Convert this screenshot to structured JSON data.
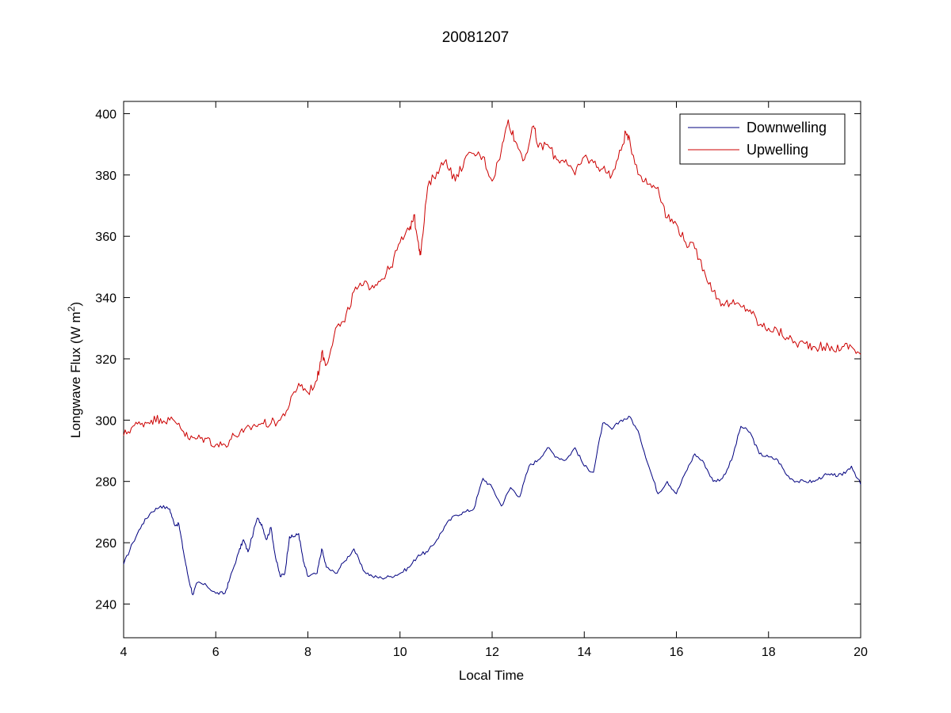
{
  "chart_data": {
    "type": "line",
    "title": "20081207",
    "xlabel": "Local Time",
    "ylabel": {
      "prefix": "Longwave Flux (W m",
      "superscript": "2",
      "suffix": ")"
    },
    "xlim": [
      4,
      20
    ],
    "ylim": [
      229,
      404
    ],
    "xticks": [
      4,
      6,
      8,
      10,
      12,
      14,
      16,
      18,
      20
    ],
    "yticks": [
      240,
      260,
      280,
      300,
      320,
      340,
      360,
      380,
      400
    ],
    "grid": false,
    "legend_position": "top-right",
    "series": [
      {
        "name": "Downwelling",
        "color": "#00007f",
        "points": [
          [
            4.0,
            253
          ],
          [
            4.2,
            260
          ],
          [
            4.4,
            266
          ],
          [
            4.6,
            270
          ],
          [
            4.8,
            272
          ],
          [
            5.0,
            271
          ],
          [
            5.1,
            266
          ],
          [
            5.2,
            266
          ],
          [
            5.3,
            257
          ],
          [
            5.4,
            249
          ],
          [
            5.5,
            243
          ],
          [
            5.6,
            247
          ],
          [
            5.8,
            246
          ],
          [
            6.0,
            243.5
          ],
          [
            6.2,
            243.5
          ],
          [
            6.3,
            248
          ],
          [
            6.5,
            257
          ],
          [
            6.6,
            261
          ],
          [
            6.7,
            257
          ],
          [
            6.9,
            268
          ],
          [
            7.0,
            266
          ],
          [
            7.1,
            261
          ],
          [
            7.2,
            265
          ],
          [
            7.3,
            255
          ],
          [
            7.4,
            249
          ],
          [
            7.5,
            250
          ],
          [
            7.6,
            262
          ],
          [
            7.7,
            262
          ],
          [
            7.8,
            263
          ],
          [
            7.9,
            254
          ],
          [
            8.0,
            249
          ],
          [
            8.2,
            250
          ],
          [
            8.3,
            258
          ],
          [
            8.4,
            252
          ],
          [
            8.6,
            250
          ],
          [
            8.8,
            254
          ],
          [
            9.0,
            258
          ],
          [
            9.2,
            251
          ],
          [
            9.4,
            249
          ],
          [
            9.6,
            248.5
          ],
          [
            9.8,
            249
          ],
          [
            10.0,
            250
          ],
          [
            10.2,
            252
          ],
          [
            10.4,
            256
          ],
          [
            10.6,
            257
          ],
          [
            10.8,
            261
          ],
          [
            11.0,
            266
          ],
          [
            11.2,
            269
          ],
          [
            11.4,
            270
          ],
          [
            11.6,
            271
          ],
          [
            11.8,
            281
          ],
          [
            12.0,
            278
          ],
          [
            12.2,
            272
          ],
          [
            12.4,
            278
          ],
          [
            12.6,
            275
          ],
          [
            12.8,
            285
          ],
          [
            13.0,
            287
          ],
          [
            13.2,
            291
          ],
          [
            13.4,
            288
          ],
          [
            13.6,
            287
          ],
          [
            13.8,
            291
          ],
          [
            14.0,
            285
          ],
          [
            14.2,
            283
          ],
          [
            14.4,
            299
          ],
          [
            14.6,
            297
          ],
          [
            14.8,
            300
          ],
          [
            15.0,
            301
          ],
          [
            15.2,
            295
          ],
          [
            15.4,
            285
          ],
          [
            15.6,
            276
          ],
          [
            15.8,
            280
          ],
          [
            16.0,
            276
          ],
          [
            16.2,
            283
          ],
          [
            16.4,
            289
          ],
          [
            16.6,
            286
          ],
          [
            16.8,
            280
          ],
          [
            17.0,
            281
          ],
          [
            17.2,
            287
          ],
          [
            17.4,
            298
          ],
          [
            17.6,
            296
          ],
          [
            17.8,
            289
          ],
          [
            18.0,
            288
          ],
          [
            18.2,
            287
          ],
          [
            18.4,
            282
          ],
          [
            18.6,
            280
          ],
          [
            18.8,
            280
          ],
          [
            19.0,
            280
          ],
          [
            19.2,
            282
          ],
          [
            19.4,
            282
          ],
          [
            19.6,
            282
          ],
          [
            19.8,
            285
          ],
          [
            20.0,
            279
          ]
        ]
      },
      {
        "name": "Upwelling",
        "color": "#cc0000",
        "points": [
          [
            4.0,
            295
          ],
          [
            4.2,
            298
          ],
          [
            4.4,
            299
          ],
          [
            4.6,
            300
          ],
          [
            4.8,
            300.5
          ],
          [
            5.0,
            300
          ],
          [
            5.2,
            299
          ],
          [
            5.4,
            294
          ],
          [
            5.6,
            294
          ],
          [
            5.8,
            294
          ],
          [
            6.0,
            292
          ],
          [
            6.2,
            292
          ],
          [
            6.4,
            295
          ],
          [
            6.6,
            296
          ],
          [
            6.8,
            298
          ],
          [
            7.0,
            299
          ],
          [
            7.2,
            299
          ],
          [
            7.4,
            300
          ],
          [
            7.6,
            305
          ],
          [
            7.8,
            312
          ],
          [
            8.0,
            309
          ],
          [
            8.2,
            313
          ],
          [
            8.3,
            322
          ],
          [
            8.4,
            318
          ],
          [
            8.6,
            330
          ],
          [
            8.8,
            332
          ],
          [
            9.0,
            342
          ],
          [
            9.2,
            344
          ],
          [
            9.4,
            344
          ],
          [
            9.6,
            346
          ],
          [
            9.8,
            350
          ],
          [
            10.0,
            358
          ],
          [
            10.2,
            362
          ],
          [
            10.3,
            367
          ],
          [
            10.4,
            358
          ],
          [
            10.45,
            354
          ],
          [
            10.6,
            376
          ],
          [
            10.8,
            381
          ],
          [
            11.0,
            385
          ],
          [
            11.2,
            378
          ],
          [
            11.4,
            385
          ],
          [
            11.6,
            387
          ],
          [
            11.8,
            386
          ],
          [
            12.0,
            378
          ],
          [
            12.2,
            388
          ],
          [
            12.35,
            398
          ],
          [
            12.5,
            391
          ],
          [
            12.7,
            385
          ],
          [
            12.9,
            396
          ],
          [
            13.0,
            389
          ],
          [
            13.2,
            390
          ],
          [
            13.4,
            385
          ],
          [
            13.6,
            385
          ],
          [
            13.8,
            380
          ],
          [
            14.0,
            386
          ],
          [
            14.2,
            384
          ],
          [
            14.4,
            382
          ],
          [
            14.6,
            380
          ],
          [
            14.8,
            388
          ],
          [
            14.9,
            394
          ],
          [
            15.0,
            390
          ],
          [
            15.2,
            380
          ],
          [
            15.4,
            377
          ],
          [
            15.6,
            376
          ],
          [
            15.8,
            366
          ],
          [
            16.0,
            364
          ],
          [
            16.2,
            358
          ],
          [
            16.4,
            356
          ],
          [
            16.6,
            349
          ],
          [
            16.8,
            342
          ],
          [
            17.0,
            338
          ],
          [
            17.2,
            338
          ],
          [
            17.4,
            337
          ],
          [
            17.6,
            336
          ],
          [
            17.8,
            331
          ],
          [
            18.0,
            330
          ],
          [
            18.2,
            329
          ],
          [
            18.4,
            327
          ],
          [
            18.6,
            325
          ],
          [
            18.8,
            325
          ],
          [
            19.0,
            324
          ],
          [
            19.2,
            324
          ],
          [
            19.4,
            323
          ],
          [
            19.6,
            324
          ],
          [
            19.8,
            324
          ],
          [
            20.0,
            321.5
          ]
        ]
      }
    ]
  }
}
